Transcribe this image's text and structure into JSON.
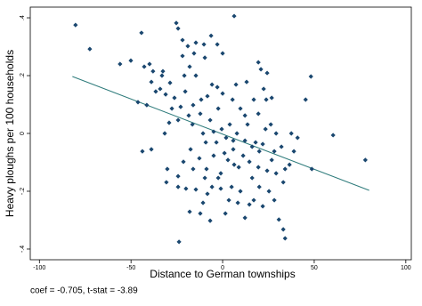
{
  "chart_data": {
    "type": "scatter",
    "x_label": "Distance to German townships",
    "y_label": "Heavy ploughs per 100 households",
    "note": "coef = -0.705,  t-stat = -3.89",
    "xlim": [
      -105,
      103
    ],
    "ylim": [
      -0.437,
      0.437
    ],
    "xticks": [
      -100,
      -50,
      0,
      50,
      100
    ],
    "yticks": [
      {
        "value": 0.4,
        "label": ".4"
      },
      {
        "value": 0.2,
        "label": ".2"
      },
      0,
      {
        "value": -0.2,
        "label": "-.2"
      },
      {
        "value": -0.4,
        "label": "-.4"
      }
    ],
    "points": {
      "color": "#1a476f",
      "x": [
        -80.3,
        -72.5,
        -44.3,
        -25.3,
        -24.3,
        -21.9,
        -19.0,
        -14.6,
        -6.3,
        -10.2,
        -2.9,
        0,
        6.3,
        19.5,
        20.9,
        24.3,
        48.2,
        -56.0,
        -50.1,
        -42.8,
        -32.6,
        -33.1,
        -21.9,
        -15.6,
        -18.0,
        -38.9,
        -34.1,
        -28.7,
        -20.9,
        -5.8,
        -8.3,
        0,
        5.4,
        17.0,
        23.8,
        45.3,
        -46.2,
        -41.4,
        -36.5,
        -31.1,
        -26.3,
        -20.4,
        -16.1,
        -11.7,
        -2.4,
        9.7,
        12.2,
        19.5,
        26.3,
        37.5,
        40.9,
        60.3,
        -43.8,
        -38.9,
        -31.6,
        -29.2,
        -24.3,
        -18.5,
        -16.5,
        -12.2,
        -6.8,
        -4.9,
        -0.5,
        3.9,
        7.8,
        13.6,
        18.0,
        23.4,
        29.2,
        32.1,
        38.9,
        77.9,
        36.5,
        48.7,
        -30.2,
        -30.7,
        -24.3,
        -21.4,
        -17.5,
        -16.1,
        -12.7,
        -8.8,
        -5.8,
        -1.0,
        2.9,
        5.8,
        8.8,
        11.2,
        14.6,
        16.1,
        20.0,
        24.3,
        26.8,
        33.1,
        34.1,
        25.3,
        28.2,
        17.0,
        9.7,
        4.9,
        -1.0,
        -8.3,
        -14.6,
        -20.0,
        -24.3,
        -18.0,
        -12.2,
        -6.8,
        1.5,
        8.3,
        14.6,
        21.9,
        30.7,
        33.1,
        34.1,
        -23.8,
        -39.9,
        -38.0,
        -9.7,
        -14.6,
        -2.9,
        7.3,
        13.1,
        22.4,
        26.8,
        -27.7,
        -22.9,
        -10.7,
        -9.2,
        -3.4,
        1.9,
        5.8,
        12.2,
        16.1,
        21.9,
        28.2,
        -4.9,
        1.0,
        6.3,
        19.5,
        29.2,
        -9.7,
        -2.4,
        20.0,
        12.2,
        3.4,
        -10.7
      ],
      "y": [
        0.375,
        0.292,
        0.348,
        0.382,
        0.363,
        0.323,
        0.302,
        0.314,
        0.338,
        0.308,
        0.308,
        0.277,
        0.406,
        0.246,
        0.222,
        0.209,
        0.197,
        0.24,
        0.252,
        0.231,
        0.215,
        0.2,
        0.268,
        0.277,
        0.231,
        0.178,
        0.154,
        0.175,
        0.2,
        0.169,
        0.129,
        0.138,
        0.117,
        0.117,
        0.117,
        0.117,
        0.108,
        0.098,
        0.145,
        0.135,
        0.123,
        0.145,
        0.098,
        0.117,
        0.086,
        0.086,
        0.062,
        0.068,
        0.031,
        0,
        -0.015,
        -0.006,
        -0.062,
        -0.055,
        0,
        0.037,
        0.046,
        0.062,
        0.031,
        0.068,
        0.046,
        0.006,
        0.015,
        0.031,
        0,
        0.031,
        -0.031,
        0.015,
        0,
        -0.046,
        -0.062,
        -0.092,
        -0.108,
        -0.123,
        -0.123,
        -0.169,
        -0.148,
        -0.098,
        -0.055,
        -0.123,
        -0.086,
        -0.123,
        -0.185,
        -0.138,
        -0.092,
        -0.055,
        -0.117,
        -0.077,
        -0.098,
        -0.154,
        -0.062,
        -0.129,
        -0.092,
        -0.169,
        -0.123,
        -0.2,
        -0.231,
        -0.231,
        -0.2,
        -0.185,
        -0.191,
        -0.209,
        -0.194,
        -0.191,
        -0.185,
        -0.271,
        -0.277,
        -0.302,
        -0.277,
        -0.24,
        -0.246,
        -0.252,
        -0.298,
        -0.332,
        -0.363,
        -0.375,
        0.24,
        0.215,
        0.262,
        0.2,
        0.16,
        0.169,
        0.178,
        0.154,
        0.123,
        0.086,
        0.092,
        0,
        -0.031,
        -0.031,
        -0.015,
        -0.025,
        -0.025,
        -0.046,
        -0.037,
        -0.062,
        -0.077,
        -0.068,
        -0.108,
        -0.117,
        -0.138,
        -0.154,
        -0.154,
        -0.185,
        -0.292,
        -0.231,
        -0.24
      ]
    },
    "fit_line": {
      "color": "#2e7b7b",
      "x": [
        -82,
        80
      ],
      "y": [
        0.197,
        -0.197
      ]
    }
  }
}
